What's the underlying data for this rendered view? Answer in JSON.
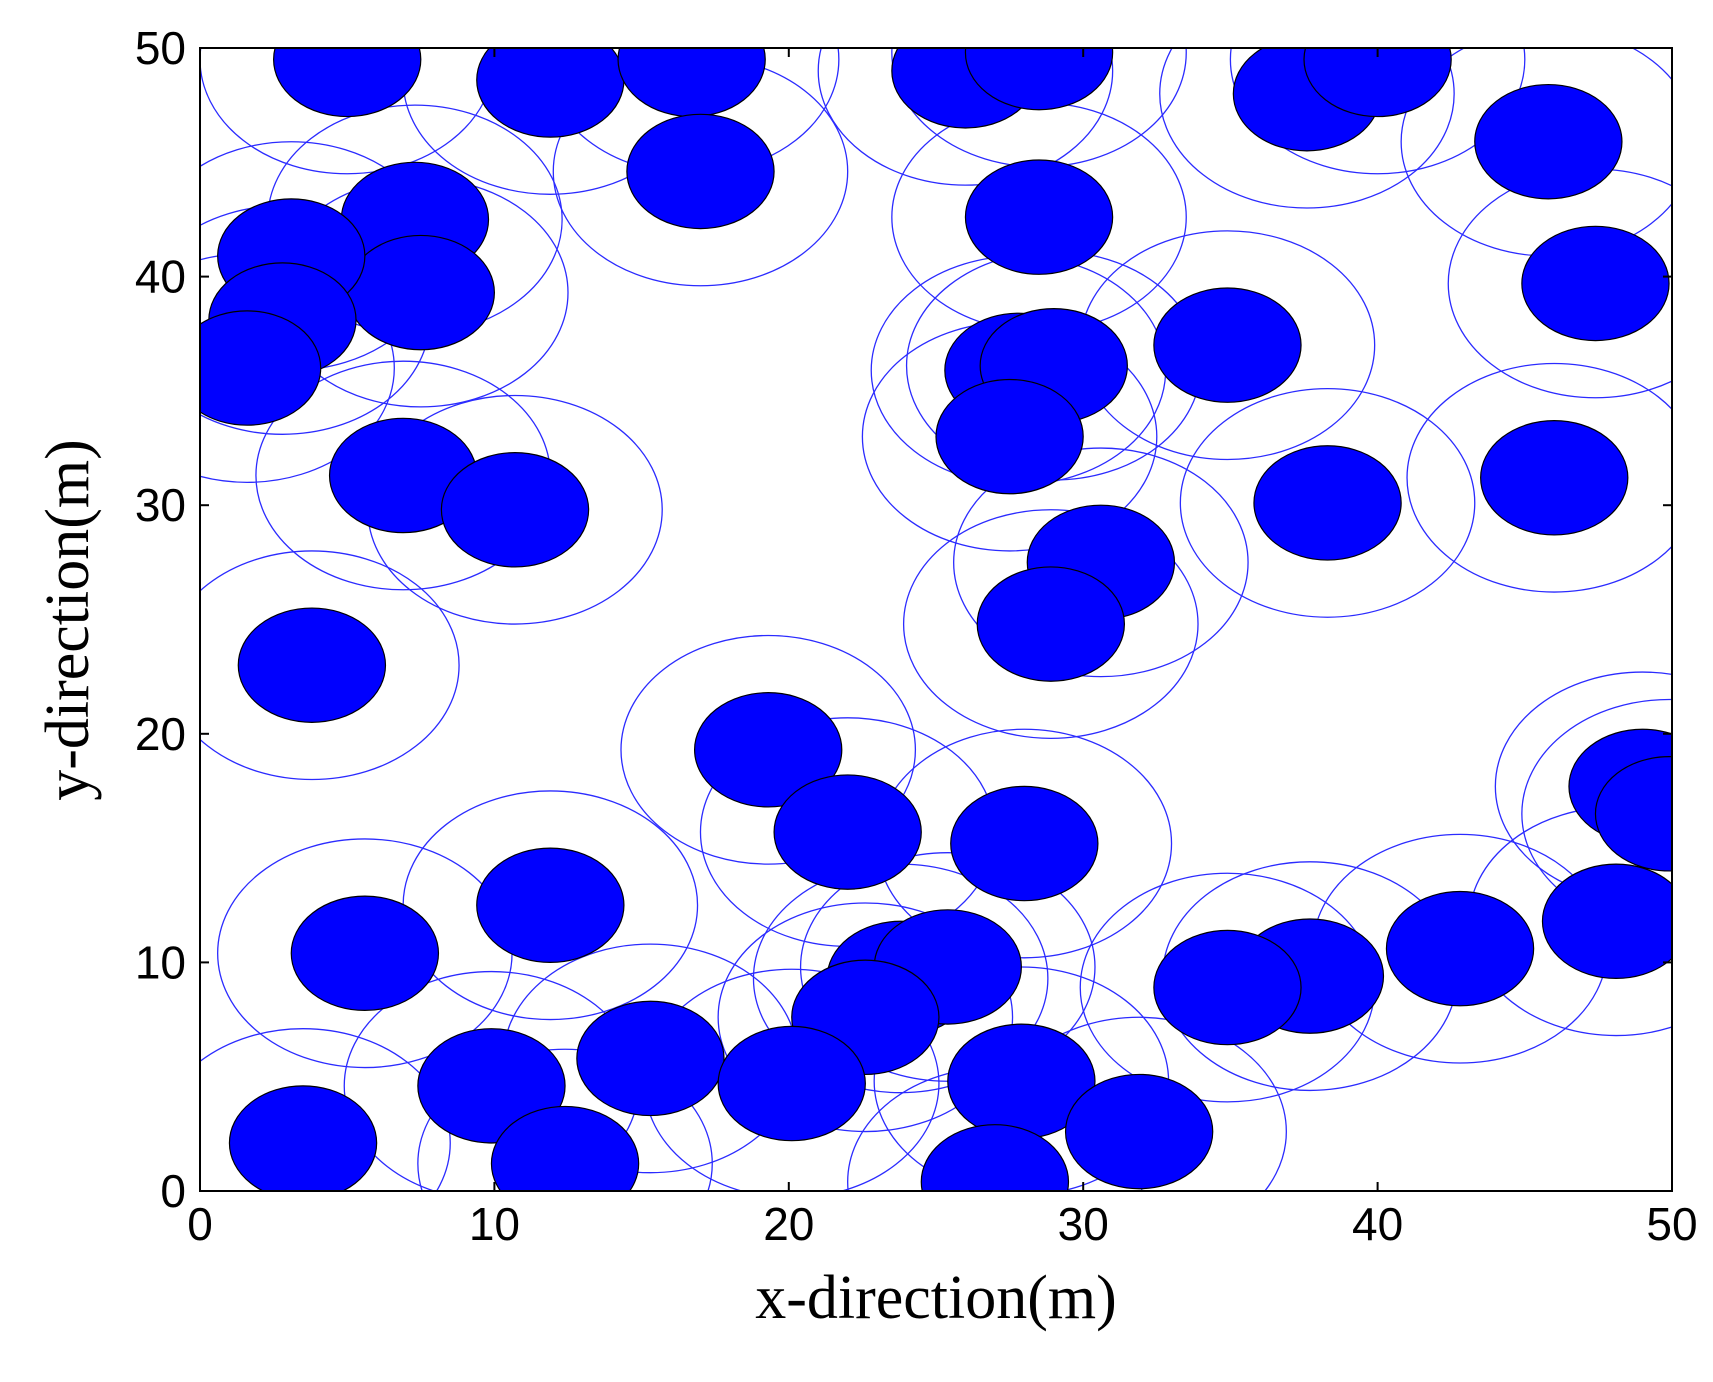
{
  "chart_data": {
    "type": "scatter",
    "xlabel": "x-direction(m)",
    "ylabel": "y-direction(m)",
    "xlim": [
      0,
      50
    ],
    "ylim": [
      0,
      50
    ],
    "xticks": [
      0,
      10,
      20,
      30,
      40,
      50
    ],
    "yticks": [
      0,
      10,
      20,
      30,
      40,
      50
    ],
    "grid": false,
    "colors": {
      "fill": "#0000ff",
      "edge": "#000000",
      "ring": "#2b2bff"
    },
    "nodes": {
      "core_radius": 2.5,
      "ring_radius": 5,
      "points": [
        [
          5,
          49.5
        ],
        [
          11.9,
          48.6
        ],
        [
          16.7,
          49.5
        ],
        [
          17,
          44.6
        ],
        [
          26,
          49
        ],
        [
          28.5,
          49.8
        ],
        [
          37.6,
          48
        ],
        [
          40,
          49.5
        ],
        [
          45.8,
          45.9
        ],
        [
          28.5,
          42.6
        ],
        [
          7.3,
          42.5
        ],
        [
          7.5,
          39.3
        ],
        [
          3.1,
          40.9
        ],
        [
          2.8,
          38.1
        ],
        [
          1.6,
          36
        ],
        [
          47.4,
          39.7
        ],
        [
          34.9,
          37
        ],
        [
          27.8,
          35.9
        ],
        [
          29,
          36.1
        ],
        [
          27.5,
          33
        ],
        [
          6.9,
          31.3
        ],
        [
          10.7,
          29.8
        ],
        [
          38.3,
          30.1
        ],
        [
          46,
          31.2
        ],
        [
          30.6,
          27.5
        ],
        [
          28.9,
          24.8
        ],
        [
          3.8,
          23
        ],
        [
          19.3,
          19.3
        ],
        [
          22,
          15.7
        ],
        [
          28,
          15.2
        ],
        [
          49,
          17.7
        ],
        [
          49.9,
          16.5
        ],
        [
          11.9,
          12.5
        ],
        [
          5.6,
          10.4
        ],
        [
          48.1,
          11.8
        ],
        [
          42.8,
          10.6
        ],
        [
          37.7,
          9.4
        ],
        [
          34.9,
          8.9
        ],
        [
          23.8,
          9.3
        ],
        [
          25.4,
          9.8
        ],
        [
          22.6,
          7.6
        ],
        [
          15.3,
          5.8
        ],
        [
          20.1,
          4.7
        ],
        [
          9.9,
          4.6
        ],
        [
          12.4,
          1.2
        ],
        [
          3.5,
          2.1
        ],
        [
          27.9,
          4.8
        ],
        [
          31.9,
          2.6
        ],
        [
          27,
          0.4
        ]
      ]
    }
  }
}
